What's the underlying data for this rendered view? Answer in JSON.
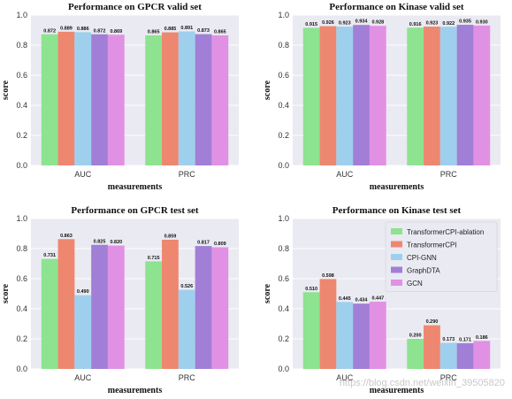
{
  "colors": {
    "panel_bg": "#eaeaf2",
    "grid": "#ffffff",
    "series": [
      "#8de38f",
      "#ee8770",
      "#9ed0ee",
      "#a17fd6",
      "#e191e4"
    ]
  },
  "legend": {
    "entries": [
      "TransformerCPI-ablation",
      "TransformerCPI",
      "CPI-GNN",
      "GraphDTA",
      "GCN"
    ],
    "placement": "top-right (Kinase test set panel)"
  },
  "watermark": "https://blog.csdn.net/weixin_39505820",
  "chart_data": [
    {
      "type": "bar",
      "title": "Performance on GPCR valid set",
      "xlabel": "measurements",
      "ylabel": "score",
      "ylim": [
        0,
        1.0
      ],
      "yticks": [
        "0.0",
        "0.2",
        "0.4",
        "0.6",
        "0.8",
        "1.0"
      ],
      "categories": [
        "AUC",
        "PRC"
      ],
      "series": [
        {
          "name": "TransformerCPI-ablation",
          "values": [
            0.872,
            0.865
          ],
          "labels": [
            "0.872",
            "0.865"
          ]
        },
        {
          "name": "TransformerCPI",
          "values": [
            0.889,
            0.885
          ],
          "labels": [
            "0.889",
            "0.885"
          ]
        },
        {
          "name": "CPI-GNN",
          "values": [
            0.886,
            0.891
          ],
          "labels": [
            "0.886",
            "0.891"
          ]
        },
        {
          "name": "GraphDTA",
          "values": [
            0.872,
            0.873
          ],
          "labels": [
            "0.872",
            "0.873"
          ]
        },
        {
          "name": "GCN",
          "values": [
            0.869,
            0.865
          ],
          "labels": [
            "0.869",
            "0.865"
          ]
        }
      ],
      "grid": true
    },
    {
      "type": "bar",
      "title": "Performance on Kinase valid set",
      "xlabel": "measurements",
      "ylabel": "score",
      "ylim": [
        0,
        1.0
      ],
      "yticks": [
        "0.0",
        "0.2",
        "0.4",
        "0.6",
        "0.8",
        "1.0"
      ],
      "categories": [
        "AUC",
        "PRC"
      ],
      "series": [
        {
          "name": "TransformerCPI-ablation",
          "values": [
            0.915,
            0.916
          ],
          "labels": [
            "0.915",
            "0.916"
          ]
        },
        {
          "name": "TransformerCPI",
          "values": [
            0.926,
            0.923
          ],
          "labels": [
            "0.926",
            "0.923"
          ]
        },
        {
          "name": "CPI-GNN",
          "values": [
            0.923,
            0.922
          ],
          "labels": [
            "0.923",
            "0.922"
          ]
        },
        {
          "name": "GraphDTA",
          "values": [
            0.934,
            0.935
          ],
          "labels": [
            "0.934",
            "0.935"
          ]
        },
        {
          "name": "GCN",
          "values": [
            0.928,
            0.93
          ],
          "labels": [
            "0.928",
            "0.930"
          ]
        }
      ],
      "grid": true
    },
    {
      "type": "bar",
      "title": "Performance on GPCR test set",
      "xlabel": "measurements",
      "ylabel": "score",
      "ylim": [
        0,
        1.0
      ],
      "yticks": [
        "0.0",
        "0.2",
        "0.4",
        "0.6",
        "0.8",
        "1.0"
      ],
      "categories": [
        "AUC",
        "PRC"
      ],
      "series": [
        {
          "name": "TransformerCPI-ablation",
          "values": [
            0.731,
            0.715
          ],
          "labels": [
            "0.731",
            "0.715"
          ]
        },
        {
          "name": "TransformerCPI",
          "values": [
            0.863,
            0.859
          ],
          "labels": [
            "0.863",
            "0.859"
          ]
        },
        {
          "name": "CPI-GNN",
          "values": [
            0.49,
            0.526
          ],
          "labels": [
            "0.490",
            "0.526"
          ]
        },
        {
          "name": "GraphDTA",
          "values": [
            0.825,
            0.817
          ],
          "labels": [
            "0.825",
            "0.817"
          ]
        },
        {
          "name": "GCN",
          "values": [
            0.82,
            0.809
          ],
          "labels": [
            "0.820",
            "0.809"
          ]
        }
      ],
      "grid": true
    },
    {
      "type": "bar",
      "title": "Performance on Kinase test set",
      "xlabel": "measurements",
      "ylabel": "score",
      "ylim": [
        0,
        1.0
      ],
      "yticks": [
        "0.0",
        "0.2",
        "0.4",
        "0.6",
        "0.8",
        "1.0"
      ],
      "categories": [
        "AUC",
        "PRC"
      ],
      "series": [
        {
          "name": "TransformerCPI-ablation",
          "values": [
            0.51,
            0.2
          ],
          "labels": [
            "0.510",
            "0.200"
          ]
        },
        {
          "name": "TransformerCPI",
          "values": [
            0.598,
            0.29
          ],
          "labels": [
            "0.598",
            "0.290"
          ]
        },
        {
          "name": "CPI-GNN",
          "values": [
            0.445,
            0.173
          ],
          "labels": [
            "0.445",
            "0.173"
          ]
        },
        {
          "name": "GraphDTA",
          "values": [
            0.434,
            0.171
          ],
          "labels": [
            "0.434",
            "0.171"
          ]
        },
        {
          "name": "GCN",
          "values": [
            0.447,
            0.186
          ],
          "labels": [
            "0.447",
            "0.186"
          ]
        }
      ],
      "grid": true,
      "legend": true
    }
  ]
}
